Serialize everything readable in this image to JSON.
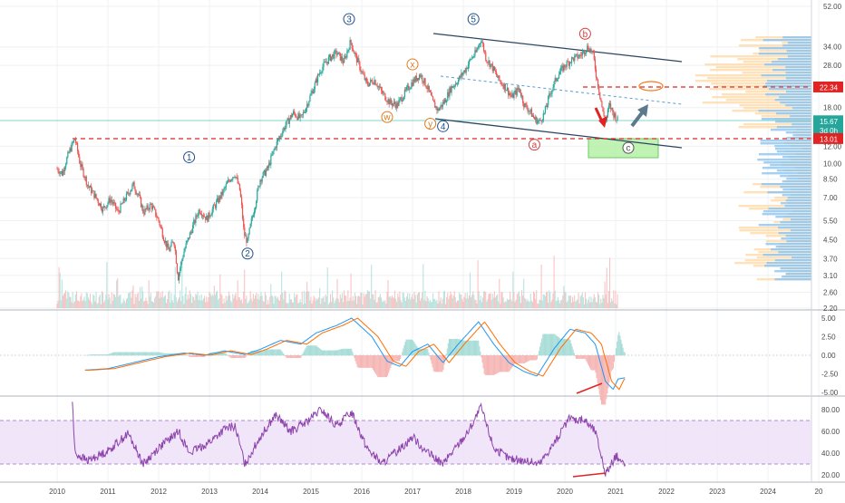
{
  "chart_data": [
    {
      "type": "line",
      "panel": "price",
      "scale": "log",
      "ylim": [
        2.2,
        54
      ],
      "y_ticks": [
        "52.00",
        "34.00",
        "28.00",
        "18.00",
        "12.00",
        "10.00",
        "8.50",
        "7.00",
        "5.50",
        "4.50",
        "3.70",
        "3.10",
        "2.60",
        "2.20"
      ],
      "x_ticks": [
        "2010",
        "2011",
        "2012",
        "2013",
        "2014",
        "2015",
        "2016",
        "2017",
        "2018",
        "2019",
        "2020",
        "2021",
        "2022",
        "2023",
        "2024",
        "20"
      ],
      "price_path": [
        [
          2010.0,
          9.5
        ],
        [
          2010.1,
          9.0
        ],
        [
          2010.25,
          11.5
        ],
        [
          2010.35,
          13.0
        ],
        [
          2010.45,
          10.0
        ],
        [
          2010.6,
          8.0
        ],
        [
          2010.8,
          6.8
        ],
        [
          2010.9,
          6.2
        ],
        [
          2011.05,
          6.9
        ],
        [
          2011.2,
          6.0
        ],
        [
          2011.35,
          7.0
        ],
        [
          2011.5,
          8.0
        ],
        [
          2011.6,
          7.2
        ],
        [
          2011.7,
          6.0
        ],
        [
          2011.85,
          6.5
        ],
        [
          2012.0,
          5.5
        ],
        [
          2012.1,
          4.6
        ],
        [
          2012.2,
          4.0
        ],
        [
          2012.3,
          4.5
        ],
        [
          2012.38,
          3.0
        ],
        [
          2012.5,
          4.0
        ],
        [
          2012.65,
          5.0
        ],
        [
          2012.8,
          6.2
        ],
        [
          2012.95,
          5.6
        ],
        [
          2013.1,
          6.4
        ],
        [
          2013.25,
          7.3
        ],
        [
          2013.4,
          8.5
        ],
        [
          2013.5,
          9.0
        ],
        [
          2013.6,
          7.5
        ],
        [
          2013.68,
          4.8
        ],
        [
          2013.75,
          4.4
        ],
        [
          2013.9,
          6.5
        ],
        [
          2014.0,
          8.5
        ],
        [
          2014.15,
          9.5
        ],
        [
          2014.3,
          12.0
        ],
        [
          2014.5,
          15.0
        ],
        [
          2014.65,
          17.0
        ],
        [
          2014.8,
          16.0
        ],
        [
          2014.9,
          18.0
        ],
        [
          2015.05,
          22.0
        ],
        [
          2015.2,
          27.0
        ],
        [
          2015.35,
          30.0
        ],
        [
          2015.5,
          32.0
        ],
        [
          2015.65,
          29.0
        ],
        [
          2015.78,
          36.0
        ],
        [
          2015.85,
          32.0
        ],
        [
          2016.0,
          26.0
        ],
        [
          2016.1,
          23.0
        ],
        [
          2016.25,
          24.0
        ],
        [
          2016.4,
          21.0
        ],
        [
          2016.55,
          19.0
        ],
        [
          2016.7,
          18.5
        ],
        [
          2016.85,
          21.0
        ],
        [
          2017.0,
          23.5
        ],
        [
          2017.15,
          25.5
        ],
        [
          2017.3,
          22.0
        ],
        [
          2017.4,
          19.0
        ],
        [
          2017.5,
          17.5
        ],
        [
          2017.65,
          19.5
        ],
        [
          2017.75,
          22.0
        ],
        [
          2017.9,
          24.0
        ],
        [
          2018.05,
          27.0
        ],
        [
          2018.15,
          30.0
        ],
        [
          2018.25,
          32.0
        ],
        [
          2018.35,
          37.0
        ],
        [
          2018.45,
          30.0
        ],
        [
          2018.55,
          28.0
        ],
        [
          2018.7,
          24.0
        ],
        [
          2018.85,
          22.0
        ],
        [
          2018.95,
          20.0
        ],
        [
          2019.1,
          22.0
        ],
        [
          2019.2,
          18.5
        ],
        [
          2019.3,
          17.5
        ],
        [
          2019.4,
          16.0
        ],
        [
          2019.5,
          15.5
        ],
        [
          2019.6,
          17.0
        ],
        [
          2019.7,
          20.5
        ],
        [
          2019.85,
          25.0
        ],
        [
          2020.0,
          28.0
        ],
        [
          2020.15,
          30.0
        ],
        [
          2020.3,
          31.0
        ],
        [
          2020.45,
          34.0
        ],
        [
          2020.55,
          32.0
        ],
        [
          2020.62,
          25.0
        ],
        [
          2020.7,
          20.0
        ],
        [
          2020.75,
          17.0
        ],
        [
          2020.8,
          15.5
        ],
        [
          2020.88,
          18.5
        ],
        [
          2020.95,
          17.0
        ],
        [
          2021.05,
          15.67
        ]
      ],
      "annotations": [
        {
          "text": "1",
          "x": 2012.6,
          "y": 10.7,
          "color": "#1e4f8c"
        },
        {
          "text": "2",
          "x": 2013.75,
          "y": 3.9,
          "color": "#1e4f8c"
        },
        {
          "text": "3",
          "x": 2015.75,
          "y": 45.5,
          "color": "#1e4f8c"
        },
        {
          "text": "4",
          "x": 2017.6,
          "y": 14.8,
          "color": "#1e4f8c"
        },
        {
          "text": "5",
          "x": 2018.2,
          "y": 45.5,
          "color": "#1e4f8c"
        },
        {
          "text": "w",
          "x": 2016.5,
          "y": 16.3,
          "color": "#e07b1f"
        },
        {
          "text": "x",
          "x": 2017.0,
          "y": 28.3,
          "color": "#e07b1f"
        },
        {
          "text": "y",
          "x": 2017.35,
          "y": 15.2,
          "color": "#e07b1f"
        },
        {
          "text": "a",
          "x": 2019.4,
          "y": 12.2,
          "color": "#d93a3a"
        },
        {
          "text": "b",
          "x": 2020.4,
          "y": 39.0,
          "color": "#d93a3a"
        },
        {
          "text": "c",
          "x": 2021.25,
          "y": 11.8,
          "color": "#555555"
        }
      ],
      "price_labels": [
        {
          "text": "22.34",
          "y": 22.34,
          "bg": "#e02424"
        },
        {
          "text": "15.67",
          "y": 15.67,
          "bg": "#26a69a"
        },
        {
          "text": "3d 0h",
          "y": 14.2,
          "bg": "#26a69a"
        },
        {
          "text": "13.01",
          "y": 13.01,
          "bg": "#e02424"
        }
      ],
      "levels": [
        22.34,
        13.01
      ],
      "last_price": 15.67
    },
    {
      "type": "line",
      "panel": "macd",
      "ylim": [
        -5.5,
        5.5
      ],
      "y_ticks": [
        "5.00",
        "2.50",
        "0.00",
        "-2.50",
        "-5.00"
      ],
      "series": [
        {
          "values_path": [
            [
              2010.55,
              -2.0
            ],
            [
              2011.0,
              -1.8
            ],
            [
              2011.5,
              -1.0
            ],
            [
              2012.0,
              -0.2
            ],
            [
              2012.5,
              0.3
            ],
            [
              2012.9,
              0.0
            ],
            [
              2013.3,
              0.6
            ],
            [
              2013.7,
              0.1
            ],
            [
              2014.0,
              0.8
            ],
            [
              2014.4,
              2.0
            ],
            [
              2014.8,
              1.5
            ],
            [
              2015.1,
              3.0
            ],
            [
              2015.5,
              4.0
            ],
            [
              2015.8,
              5.0
            ],
            [
              2016.2,
              2.5
            ],
            [
              2016.5,
              -0.8
            ],
            [
              2016.75,
              -1.5
            ],
            [
              2017.0,
              0.5
            ],
            [
              2017.3,
              1.5
            ],
            [
              2017.6,
              -1.0
            ],
            [
              2017.9,
              1.5
            ],
            [
              2018.3,
              4.5
            ],
            [
              2018.6,
              1.5
            ],
            [
              2018.9,
              -1.0
            ],
            [
              2019.2,
              -2.2
            ],
            [
              2019.45,
              -2.8
            ],
            [
              2019.8,
              1.0
            ],
            [
              2020.1,
              3.5
            ],
            [
              2020.4,
              3.0
            ],
            [
              2020.6,
              1.5
            ],
            [
              2020.8,
              -3.5
            ],
            [
              2020.95,
              -4.6
            ],
            [
              2021.05,
              -3.2
            ],
            [
              2021.2,
              -3.0
            ]
          ]
        }
      ]
    },
    {
      "type": "line",
      "panel": "rsi",
      "ylim": [
        15,
        90
      ],
      "y_ticks": [
        "80.00",
        "60.00",
        "40.00",
        "20.00"
      ],
      "band": [
        30,
        70
      ],
      "series": [
        {
          "values_path": [
            [
              2010.3,
              88
            ],
            [
              2010.35,
              40
            ],
            [
              2010.6,
              33
            ],
            [
              2011.0,
              42
            ],
            [
              2011.4,
              58
            ],
            [
              2011.7,
              30
            ],
            [
              2012.0,
              45
            ],
            [
              2012.4,
              60
            ],
            [
              2012.6,
              40
            ],
            [
              2013.0,
              50
            ],
            [
              2013.3,
              62
            ],
            [
              2013.5,
              65
            ],
            [
              2013.7,
              30
            ],
            [
              2014.0,
              55
            ],
            [
              2014.3,
              75
            ],
            [
              2014.6,
              60
            ],
            [
              2014.9,
              68
            ],
            [
              2015.2,
              80
            ],
            [
              2015.5,
              65
            ],
            [
              2015.8,
              78
            ],
            [
              2016.1,
              45
            ],
            [
              2016.4,
              30
            ],
            [
              2016.7,
              42
            ],
            [
              2017.0,
              55
            ],
            [
              2017.3,
              40
            ],
            [
              2017.6,
              30
            ],
            [
              2017.9,
              48
            ],
            [
              2018.1,
              60
            ],
            [
              2018.35,
              82
            ],
            [
              2018.6,
              45
            ],
            [
              2018.9,
              35
            ],
            [
              2019.2,
              33
            ],
            [
              2019.5,
              30
            ],
            [
              2019.8,
              50
            ],
            [
              2020.1,
              72
            ],
            [
              2020.4,
              70
            ],
            [
              2020.6,
              60
            ],
            [
              2020.8,
              22
            ],
            [
              2020.9,
              28
            ],
            [
              2021.0,
              38
            ],
            [
              2021.2,
              28
            ]
          ]
        }
      ]
    }
  ]
}
